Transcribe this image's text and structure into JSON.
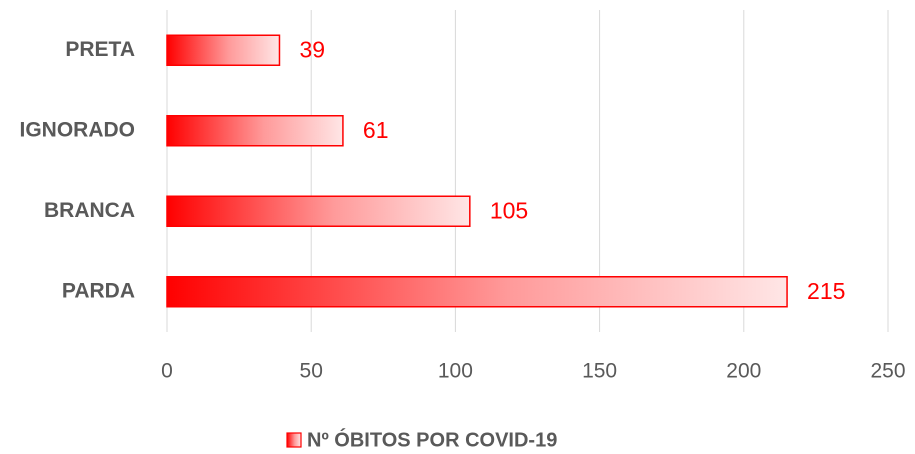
{
  "chart_data": {
    "type": "hbar",
    "categories": [
      "PRETA",
      "IGNORADO",
      "BRANCA",
      "PARDA"
    ],
    "series": [
      {
        "name": "Nº ÓBITOS POR COVID-19",
        "color": "#ff0000",
        "values": [
          39,
          61,
          105,
          215
        ]
      }
    ],
    "xlim": [
      0,
      250
    ],
    "xticks": [
      0,
      50,
      100,
      150,
      200,
      250
    ],
    "grid": true,
    "legend": "bottom"
  }
}
